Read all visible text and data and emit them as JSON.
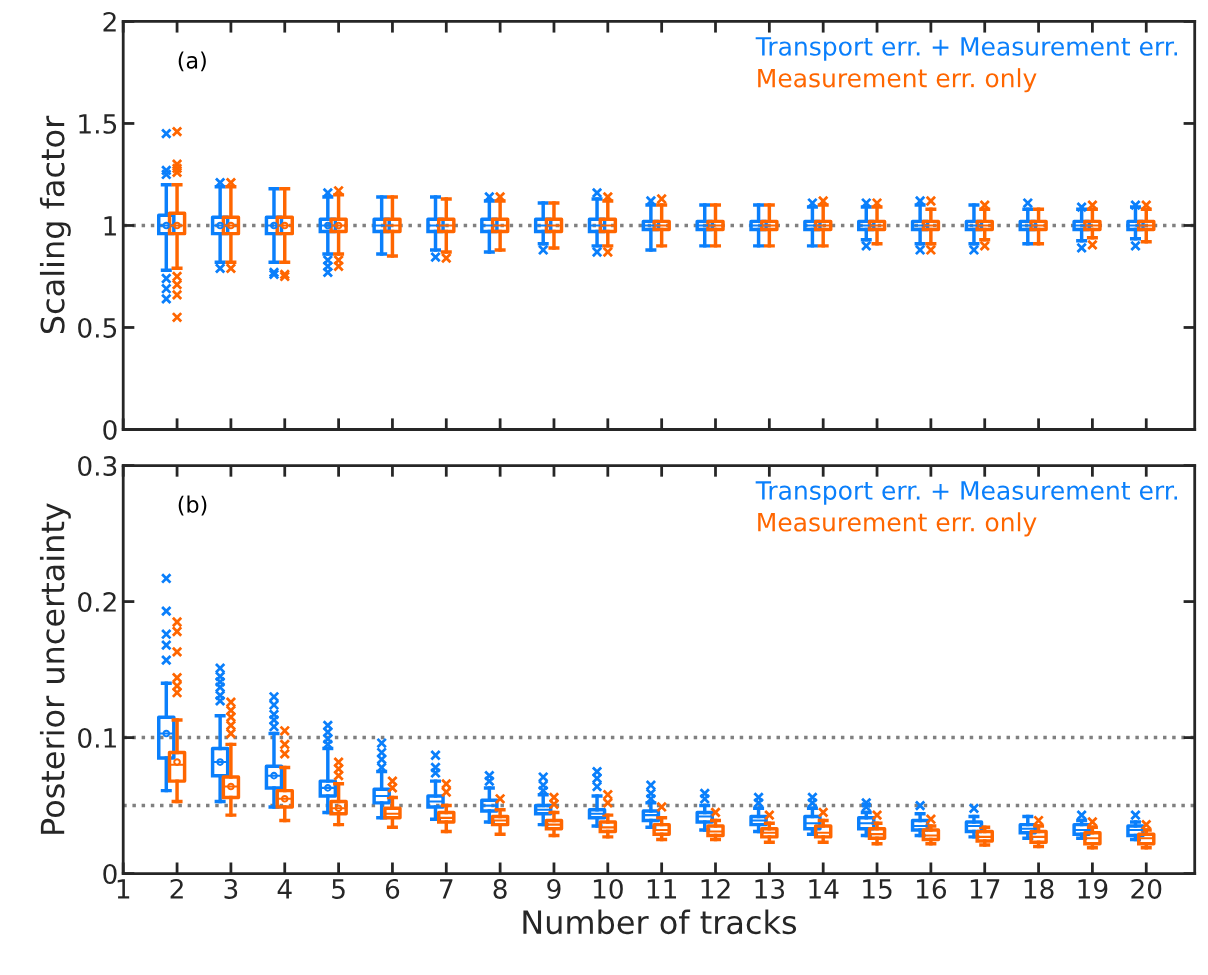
{
  "chart_data": [
    {
      "type": "box",
      "ylabel": "Scaling factor",
      "annotations": [
        "(a)"
      ],
      "x": [
        2,
        3,
        4,
        5,
        6,
        7,
        8,
        9,
        10,
        11,
        12,
        13,
        14,
        15,
        16,
        17,
        18,
        19,
        20
      ],
      "xlim": [
        1,
        20.9
      ],
      "xticks": [
        1,
        2,
        3,
        4,
        5,
        6,
        7,
        8,
        9,
        10,
        11,
        12,
        13,
        14,
        15,
        16,
        17,
        18,
        19,
        20
      ],
      "ylim": [
        0,
        2
      ],
      "yticks": [
        0,
        0.5,
        1,
        1.5,
        2
      ],
      "tick_labels": "y",
      "grid": false,
      "legend": "top right",
      "marker": "cross",
      "ref_lines": [
        {
          "axis": "y",
          "value": 1,
          "color": "#808080",
          "line_style": "dotted"
        }
      ],
      "series": [
        {
          "name": "Transport err. + Measurement err.",
          "color": "#0a7ffb",
          "boxes": [
            {
              "low": 0.78,
              "q1": 0.96,
              "median": 1.0,
              "q3": 1.05,
              "high": 1.2,
              "mean": 1.0,
              "outliers": [
                1.45,
                1.27,
                1.25,
                0.74,
                0.69,
                0.64
              ]
            },
            {
              "low": 0.82,
              "q1": 0.96,
              "median": 1.0,
              "q3": 1.04,
              "high": 1.19,
              "mean": 1.0,
              "outliers": [
                1.21,
                0.79
              ]
            },
            {
              "low": 0.82,
              "q1": 0.96,
              "median": 1.0,
              "q3": 1.04,
              "high": 1.18,
              "mean": 1.0,
              "outliers": [
                0.77,
                0.76
              ]
            },
            {
              "low": 0.86,
              "q1": 0.97,
              "median": 1.0,
              "q3": 1.03,
              "high": 1.14,
              "mean": 1.0,
              "outliers": [
                1.16,
                0.83,
                0.8,
                0.77
              ]
            },
            {
              "low": 0.86,
              "q1": 0.97,
              "median": 1.0,
              "q3": 1.03,
              "high": 1.14
            },
            {
              "low": 0.88,
              "q1": 0.97,
              "median": 1.0,
              "q3": 1.03,
              "high": 1.14,
              "outliers": [
                0.845
              ]
            },
            {
              "low": 0.87,
              "q1": 0.97,
              "median": 1.0,
              "q3": 1.03,
              "high": 1.12,
              "outliers": [
                1.14
              ]
            },
            {
              "low": 0.91,
              "q1": 0.97,
              "median": 1.0,
              "q3": 1.03,
              "high": 1.11,
              "outliers": [
                0.88
              ]
            },
            {
              "low": 0.9,
              "q1": 0.97,
              "median": 1.0,
              "q3": 1.03,
              "high": 1.13,
              "outliers": [
                1.16,
                0.87
              ]
            },
            {
              "low": 0.88,
              "q1": 0.98,
              "median": 1.0,
              "q3": 1.02,
              "high": 1.1,
              "outliers": [
                1.12
              ]
            },
            {
              "low": 0.9,
              "q1": 0.98,
              "median": 1.0,
              "q3": 1.02,
              "high": 1.1
            },
            {
              "low": 0.9,
              "q1": 0.98,
              "median": 1.0,
              "q3": 1.02,
              "high": 1.1
            },
            {
              "low": 0.9,
              "q1": 0.98,
              "median": 1.0,
              "q3": 1.02,
              "high": 1.09,
              "outliers": [
                1.11
              ]
            },
            {
              "low": 0.93,
              "q1": 0.98,
              "median": 1.0,
              "q3": 1.02,
              "high": 1.09,
              "outliers": [
                1.11,
                0.9
              ]
            },
            {
              "low": 0.91,
              "q1": 0.98,
              "median": 1.0,
              "q3": 1.02,
              "high": 1.1,
              "outliers": [
                1.12,
                0.88
              ]
            },
            {
              "low": 0.91,
              "q1": 0.98,
              "median": 1.0,
              "q3": 1.02,
              "high": 1.1,
              "outliers": [
                0.88
              ]
            },
            {
              "low": 0.91,
              "q1": 0.98,
              "median": 1.0,
              "q3": 1.02,
              "high": 1.08,
              "outliers": [
                1.11
              ]
            },
            {
              "low": 0.925,
              "q1": 0.98,
              "median": 1.0,
              "q3": 1.02,
              "high": 1.08,
              "outliers": [
                1.09,
                0.89
              ]
            },
            {
              "low": 0.935,
              "q1": 0.98,
              "median": 1.0,
              "q3": 1.02,
              "high": 1.09,
              "outliers": [
                1.1,
                0.9
              ]
            }
          ]
        },
        {
          "name": "Measurement err. only",
          "color": "#ff6600",
          "boxes": [
            {
              "low": 0.79,
              "q1": 0.96,
              "median": 1.0,
              "q3": 1.06,
              "high": 1.2,
              "mean": 1.0,
              "outliers": [
                1.46,
                1.3,
                1.28,
                1.26,
                0.75,
                0.71,
                0.66,
                0.55
              ]
            },
            {
              "low": 0.82,
              "q1": 0.96,
              "median": 1.0,
              "q3": 1.04,
              "high": 1.19,
              "mean": 1.0,
              "outliers": [
                1.21,
                0.79
              ]
            },
            {
              "low": 0.82,
              "q1": 0.96,
              "median": 1.0,
              "q3": 1.04,
              "high": 1.18,
              "mean": 1.0,
              "outliers": [
                0.76,
                0.75
              ]
            },
            {
              "low": 0.86,
              "q1": 0.97,
              "median": 1.0,
              "q3": 1.03,
              "high": 1.15,
              "mean": 1.0,
              "outliers": [
                1.17,
                0.83,
                0.8
              ]
            },
            {
              "low": 0.85,
              "q1": 0.97,
              "median": 1.0,
              "q3": 1.03,
              "high": 1.14
            },
            {
              "low": 0.87,
              "q1": 0.97,
              "median": 1.0,
              "q3": 1.03,
              "high": 1.13,
              "outliers": [
                0.84
              ]
            },
            {
              "low": 0.88,
              "q1": 0.97,
              "median": 1.0,
              "q3": 1.03,
              "high": 1.12,
              "outliers": [
                1.14
              ]
            },
            {
              "low": 0.89,
              "q1": 0.97,
              "median": 1.0,
              "q3": 1.03,
              "high": 1.11
            },
            {
              "low": 0.9,
              "q1": 0.97,
              "median": 1.0,
              "q3": 1.03,
              "high": 1.12,
              "outliers": [
                1.14,
                0.87
              ]
            },
            {
              "low": 0.9,
              "q1": 0.98,
              "median": 1.0,
              "q3": 1.02,
              "high": 1.1,
              "outliers": [
                1.13
              ]
            },
            {
              "low": 0.9,
              "q1": 0.98,
              "median": 1.0,
              "q3": 1.02,
              "high": 1.1
            },
            {
              "low": 0.9,
              "q1": 0.98,
              "median": 1.0,
              "q3": 1.02,
              "high": 1.1
            },
            {
              "low": 0.9,
              "q1": 0.98,
              "median": 1.0,
              "q3": 1.02,
              "high": 1.1,
              "outliers": [
                1.12
              ]
            },
            {
              "low": 0.91,
              "q1": 0.98,
              "median": 1.0,
              "q3": 1.02,
              "high": 1.09,
              "outliers": [
                1.11
              ]
            },
            {
              "low": 0.91,
              "q1": 0.98,
              "median": 1.0,
              "q3": 1.02,
              "high": 1.08,
              "outliers": [
                1.12,
                0.88
              ]
            },
            {
              "low": 0.93,
              "q1": 0.98,
              "median": 1.0,
              "q3": 1.02,
              "high": 1.08,
              "outliers": [
                1.1,
                0.9
              ]
            },
            {
              "low": 0.91,
              "q1": 0.98,
              "median": 1.0,
              "q3": 1.02,
              "high": 1.08
            },
            {
              "low": 0.94,
              "q1": 0.98,
              "median": 1.0,
              "q3": 1.02,
              "high": 1.08,
              "outliers": [
                1.1,
                0.905
              ]
            },
            {
              "low": 0.92,
              "q1": 0.98,
              "median": 1.0,
              "q3": 1.02,
              "high": 1.08,
              "outliers": [
                1.1
              ]
            }
          ]
        }
      ]
    },
    {
      "type": "box",
      "ylabel": "Posterior uncertainty",
      "xlabel": "Number of tracks",
      "annotations": [
        "(b)"
      ],
      "x": [
        2,
        3,
        4,
        5,
        6,
        7,
        8,
        9,
        10,
        11,
        12,
        13,
        14,
        15,
        16,
        17,
        18,
        19,
        20
      ],
      "xlim": [
        1,
        20.9
      ],
      "xticks": [
        1,
        2,
        3,
        4,
        5,
        6,
        7,
        8,
        9,
        10,
        11,
        12,
        13,
        14,
        15,
        16,
        17,
        18,
        19,
        20
      ],
      "ylim": [
        0,
        0.3
      ],
      "yticks": [
        0,
        0.1,
        0.2,
        0.3
      ],
      "grid": false,
      "legend": "top right",
      "marker": "cross",
      "ref_lines": [
        {
          "axis": "y",
          "value": 0.1,
          "color": "#808080",
          "line_style": "dotted"
        },
        {
          "axis": "y",
          "value": 0.05,
          "color": "#808080",
          "line_style": "dotted"
        }
      ],
      "series": [
        {
          "name": "Transport err. + Measurement err.",
          "color": "#0a7ffb",
          "boxes": [
            {
              "low": 0.061,
              "q1": 0.085,
              "median": 0.103,
              "q3": 0.115,
              "high": 0.14,
              "mean": 0.103,
              "outliers": [
                0.217,
                0.193,
                0.176,
                0.168,
                0.157
              ]
            },
            {
              "low": 0.053,
              "q1": 0.072,
              "median": 0.082,
              "q3": 0.092,
              "high": 0.116,
              "mean": 0.082,
              "outliers": [
                0.151,
                0.145,
                0.141,
                0.137,
                0.131,
                0.127
              ]
            },
            {
              "low": 0.049,
              "q1": 0.063,
              "median": 0.072,
              "q3": 0.079,
              "high": 0.103,
              "mean": 0.072,
              "outliers": [
                0.13,
                0.124,
                0.117,
                0.113,
                0.108
              ]
            },
            {
              "low": 0.045,
              "q1": 0.057,
              "median": 0.063,
              "q3": 0.068,
              "high": 0.092,
              "mean": 0.063,
              "outliers": [
                0.109,
                0.104,
                0.099,
                0.095
              ]
            },
            {
              "low": 0.041,
              "q1": 0.052,
              "median": 0.057,
              "q3": 0.062,
              "high": 0.075,
              "outliers": [
                0.096,
                0.089,
                0.084,
                0.078
              ]
            },
            {
              "low": 0.04,
              "q1": 0.049,
              "median": 0.053,
              "q3": 0.057,
              "high": 0.068,
              "outliers": [
                0.087,
                0.078,
                0.074
              ]
            },
            {
              "low": 0.038,
              "q1": 0.046,
              "median": 0.05,
              "q3": 0.054,
              "high": 0.063,
              "outliers": [
                0.072,
                0.068
              ]
            },
            {
              "low": 0.036,
              "q1": 0.044,
              "median": 0.047,
              "q3": 0.05,
              "high": 0.058,
              "outliers": [
                0.071,
                0.065,
                0.061
              ]
            },
            {
              "low": 0.035,
              "q1": 0.041,
              "median": 0.044,
              "q3": 0.047,
              "high": 0.057,
              "outliers": [
                0.075,
                0.07,
                0.064
              ]
            },
            {
              "low": 0.034,
              "q1": 0.039,
              "median": 0.043,
              "q3": 0.046,
              "high": 0.052,
              "outliers": [
                0.065,
                0.059,
                0.055
              ]
            },
            {
              "low": 0.032,
              "q1": 0.038,
              "median": 0.042,
              "q3": 0.045,
              "high": 0.05,
              "outliers": [
                0.059,
                0.055
              ]
            },
            {
              "low": 0.031,
              "q1": 0.036,
              "median": 0.039,
              "q3": 0.042,
              "high": 0.048,
              "outliers": [
                0.056,
                0.052
              ]
            },
            {
              "low": 0.029,
              "q1": 0.033,
              "median": 0.037,
              "q3": 0.042,
              "high": 0.048,
              "outliers": [
                0.056,
                0.052
              ]
            },
            {
              "low": 0.028,
              "q1": 0.033,
              "median": 0.037,
              "q3": 0.041,
              "high": 0.045,
              "outliers": [
                0.052,
                0.049
              ]
            },
            {
              "low": 0.028,
              "q1": 0.032,
              "median": 0.035,
              "q3": 0.039,
              "high": 0.044,
              "outliers": [
                0.05
              ]
            },
            {
              "low": 0.027,
              "q1": 0.031,
              "median": 0.035,
              "q3": 0.038,
              "high": 0.042,
              "outliers": [
                0.048
              ]
            },
            {
              "low": 0.026,
              "q1": 0.03,
              "median": 0.033,
              "q3": 0.036,
              "high": 0.042
            },
            {
              "low": 0.026,
              "q1": 0.029,
              "median": 0.032,
              "q3": 0.036,
              "high": 0.039,
              "outliers": [
                0.043
              ]
            },
            {
              "low": 0.025,
              "q1": 0.028,
              "median": 0.032,
              "q3": 0.035,
              "high": 0.038,
              "outliers": [
                0.043
              ]
            }
          ]
        },
        {
          "name": "Measurement err. only",
          "color": "#ff6600",
          "boxes": [
            {
              "low": 0.053,
              "q1": 0.068,
              "median": 0.08,
              "q3": 0.089,
              "high": 0.113,
              "mean": 0.082,
              "outliers": [
                0.185,
                0.178,
                0.163,
                0.144,
                0.138,
                0.133
              ]
            },
            {
              "low": 0.043,
              "q1": 0.056,
              "median": 0.064,
              "q3": 0.071,
              "high": 0.095,
              "mean": 0.064,
              "outliers": [
                0.126,
                0.12,
                0.115,
                0.109,
                0.103
              ]
            },
            {
              "low": 0.039,
              "q1": 0.049,
              "median": 0.055,
              "q3": 0.061,
              "high": 0.078,
              "mean": 0.055,
              "outliers": [
                0.105,
                0.095,
                0.088
              ]
            },
            {
              "low": 0.036,
              "q1": 0.044,
              "median": 0.048,
              "q3": 0.053,
              "high": 0.066,
              "mean": 0.048,
              "outliers": [
                0.082,
                0.077,
                0.072
              ]
            },
            {
              "low": 0.034,
              "q1": 0.041,
              "median": 0.044,
              "q3": 0.048,
              "high": 0.056,
              "outliers": [
                0.068,
                0.063
              ]
            },
            {
              "low": 0.031,
              "q1": 0.038,
              "median": 0.041,
              "q3": 0.045,
              "high": 0.05,
              "outliers": [
                0.066,
                0.06
              ]
            },
            {
              "low": 0.029,
              "q1": 0.036,
              "median": 0.039,
              "q3": 0.042,
              "high": 0.047,
              "outliers": [
                0.055
              ]
            },
            {
              "low": 0.028,
              "q1": 0.033,
              "median": 0.036,
              "q3": 0.039,
              "high": 0.045,
              "outliers": [
                0.056,
                0.051
              ]
            },
            {
              "low": 0.027,
              "q1": 0.031,
              "median": 0.034,
              "q3": 0.038,
              "high": 0.043,
              "outliers": [
                0.058,
                0.052
              ]
            },
            {
              "low": 0.025,
              "q1": 0.029,
              "median": 0.032,
              "q3": 0.036,
              "high": 0.041,
              "outliers": [
                0.049
              ]
            },
            {
              "low": 0.025,
              "q1": 0.028,
              "median": 0.031,
              "q3": 0.035,
              "high": 0.039,
              "outliers": [
                0.045
              ]
            },
            {
              "low": 0.023,
              "q1": 0.027,
              "median": 0.03,
              "q3": 0.033,
              "high": 0.037,
              "outliers": [
                0.043
              ]
            },
            {
              "low": 0.023,
              "q1": 0.027,
              "median": 0.03,
              "q3": 0.035,
              "high": 0.039,
              "outliers": [
                0.045
              ]
            },
            {
              "low": 0.022,
              "q1": 0.026,
              "median": 0.029,
              "q3": 0.033,
              "high": 0.037,
              "outliers": [
                0.043
              ]
            },
            {
              "low": 0.022,
              "q1": 0.025,
              "median": 0.028,
              "q3": 0.032,
              "high": 0.035,
              "outliers": [
                0.04
              ]
            },
            {
              "low": 0.021,
              "q1": 0.024,
              "median": 0.027,
              "q3": 0.031,
              "high": 0.034
            },
            {
              "low": 0.02,
              "q1": 0.023,
              "median": 0.027,
              "q3": 0.031,
              "high": 0.035,
              "outliers": [
                0.039
              ]
            },
            {
              "low": 0.019,
              "q1": 0.022,
              "median": 0.026,
              "q3": 0.03,
              "high": 0.034,
              "outliers": [
                0.038
              ]
            },
            {
              "low": 0.019,
              "q1": 0.022,
              "median": 0.026,
              "q3": 0.029,
              "high": 0.032,
              "outliers": [
                0.036
              ]
            }
          ]
        }
      ]
    }
  ]
}
